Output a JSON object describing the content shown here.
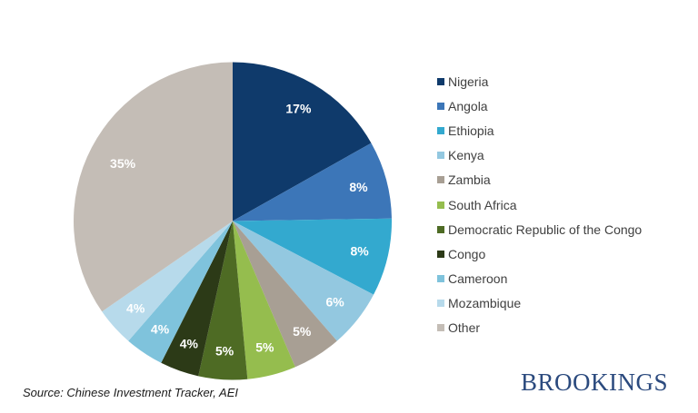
{
  "chart_data": {
    "type": "pie",
    "title": "",
    "categories": [
      "Nigeria",
      "Angola",
      "Ethiopia",
      "Kenya",
      "Zambia",
      "South Africa",
      "Democratic Republic of the Congo",
      "Congo",
      "Cameroon",
      "Mozambique",
      "Other"
    ],
    "values": [
      17,
      8,
      8,
      6,
      5,
      5,
      5,
      4,
      4,
      4,
      35
    ],
    "labels": [
      "17%",
      "8%",
      "8%",
      "6%",
      "5%",
      "5%",
      "5%",
      "4%",
      "4%",
      "4%",
      "35%"
    ],
    "colors": [
      "#0f3a6b",
      "#3c76b8",
      "#33a9cf",
      "#93c8e0",
      "#a89f94",
      "#95bd4e",
      "#4e6b24",
      "#2c3a17",
      "#7fc3dc",
      "#b7daeb",
      "#c4bdb6"
    ],
    "start_angle_deg": 0,
    "direction": "clockwise",
    "legend_position": "right",
    "unit": "%"
  },
  "legend": {
    "items": [
      {
        "label": "Nigeria",
        "color": "#0f3a6b"
      },
      {
        "label": "Angola",
        "color": "#3c76b8"
      },
      {
        "label": "Ethiopia",
        "color": "#33a9cf"
      },
      {
        "label": "Kenya",
        "color": "#93c8e0"
      },
      {
        "label": "Zambia",
        "color": "#a89f94"
      },
      {
        "label": "South Africa",
        "color": "#95bd4e"
      },
      {
        "label": "Democratic Republic of the Congo",
        "color": "#4e6b24"
      },
      {
        "label": "Congo",
        "color": "#2c3a17"
      },
      {
        "label": "Cameroon",
        "color": "#7fc3dc"
      },
      {
        "label": "Mozambique",
        "color": "#b7daeb"
      },
      {
        "label": "Other",
        "color": "#c4bdb6"
      }
    ]
  },
  "footer": {
    "source": "Source: Chinese Investment Tracker, AEI",
    "brand": "BROOKINGS"
  }
}
